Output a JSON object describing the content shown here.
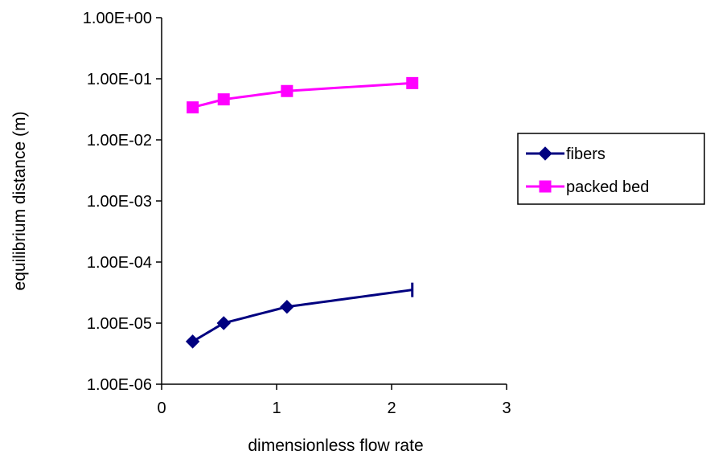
{
  "chart_data": {
    "type": "line",
    "title": "",
    "xlabel": "dimensionless flow rate",
    "ylabel": "equilibrium distance (m)",
    "xlim": [
      0,
      3
    ],
    "ylim": [
      1e-06,
      1
    ],
    "yscale": "log",
    "grid": false,
    "legend_position": "right",
    "x_ticks": [
      0,
      1,
      2,
      3
    ],
    "x_tick_labels": [
      "0",
      "1",
      "2",
      "3"
    ],
    "y_ticks": [
      1e-06,
      1e-05,
      0.0001,
      0.001,
      0.01,
      0.1,
      1
    ],
    "y_tick_labels": [
      "1.00E-06",
      "1.00E-05",
      "1.00E-04",
      "1.00E-03",
      "1.00E-02",
      "1.00E-01",
      "1.00E+00"
    ],
    "series": [
      {
        "name": "fibers",
        "color": "#000080",
        "marker": "diamond",
        "x": [
          0.27,
          0.54,
          1.09,
          2.18
        ],
        "y": [
          5e-06,
          1e-05,
          1.85e-05,
          3.5e-05
        ],
        "end_marker": "bar"
      },
      {
        "name": "packed bed",
        "color": "#ff00ff",
        "marker": "square",
        "x": [
          0.27,
          0.54,
          1.09,
          2.18
        ],
        "y": [
          0.034,
          0.046,
          0.063,
          0.085
        ]
      }
    ]
  }
}
